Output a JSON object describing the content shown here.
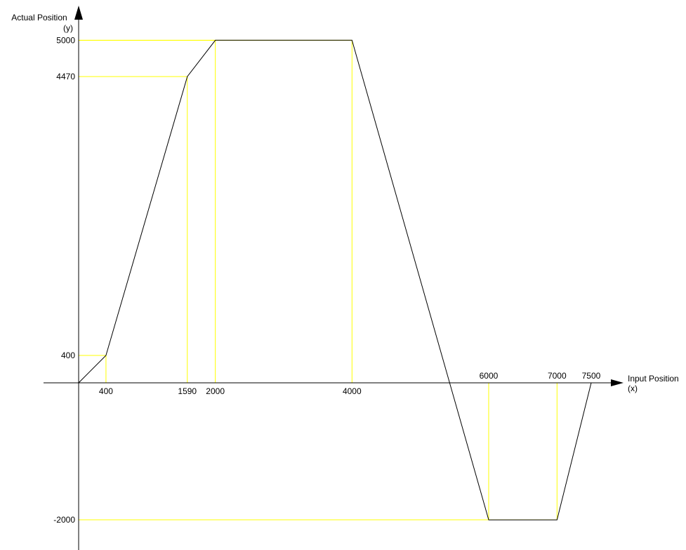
{
  "chart_data": {
    "type": "line",
    "xlabel": [
      "Input Position",
      "(x)"
    ],
    "ylabel": [
      "Actual Position",
      "(y)"
    ],
    "xlim": [
      -500,
      8500
    ],
    "ylim": [
      -2300,
      5400
    ],
    "grid": false,
    "colors": {
      "curve": "#000000",
      "guide": "#ffff00",
      "axis": "#000000"
    },
    "series": [
      {
        "x": [
          0,
          400,
          1590,
          2000,
          4000,
          6000,
          7000,
          7500
        ],
        "y": [
          0,
          400,
          4470,
          5000,
          5000,
          -2000,
          -2000,
          0
        ]
      }
    ],
    "x_ticks": [
      {
        "value": 400,
        "label": "400",
        "side": "below"
      },
      {
        "value": 1590,
        "label": "1590",
        "side": "below"
      },
      {
        "value": 2000,
        "label": "2000",
        "side": "below"
      },
      {
        "value": 4000,
        "label": "4000",
        "side": "below"
      },
      {
        "value": 6000,
        "label": "6000",
        "side": "above"
      },
      {
        "value": 7000,
        "label": "7000",
        "side": "above"
      },
      {
        "value": 7500,
        "label": "7500",
        "side": "above"
      }
    ],
    "y_ticks": [
      {
        "value": 5000,
        "label": "5000"
      },
      {
        "value": 4470,
        "label": "4470"
      },
      {
        "value": 400,
        "label": "400"
      },
      {
        "value": -2000,
        "label": "-2000"
      }
    ],
    "guides": [
      {
        "x": 400,
        "y": 400
      },
      {
        "x": 1590,
        "y": 4470
      },
      {
        "x": 2000,
        "y": 5000
      },
      {
        "x": 4000,
        "y": 5000
      },
      {
        "x": 6000,
        "y": -2000
      },
      {
        "x": 7000,
        "y": -2000
      }
    ]
  }
}
